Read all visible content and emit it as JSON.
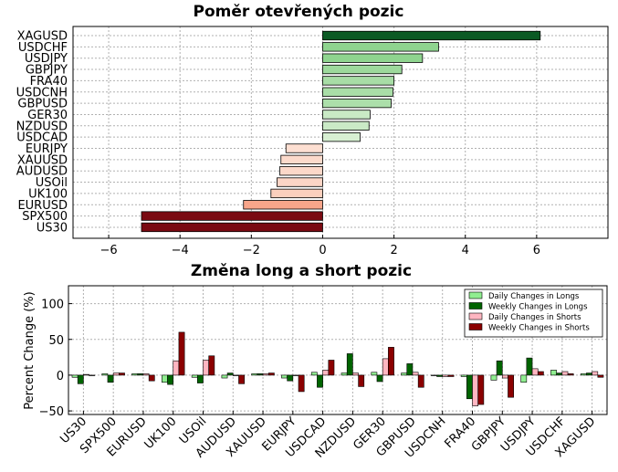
{
  "chart_data": [
    {
      "type": "bar",
      "orientation": "horizontal",
      "title": "Poměr otevřených pozic",
      "categories": [
        "XAGUSD",
        "USDCHF",
        "USDJPY",
        "GBPJPY",
        "FRA40",
        "USDCNH",
        "GBPUSD",
        "GER30",
        "NZDUSD",
        "USDCAD",
        "EURJPY",
        "XAUUSD",
        "AUDUSD",
        "USOil",
        "UK100",
        "EURUSD",
        "SPX500",
        "US30"
      ],
      "values": [
        6.1,
        3.25,
        2.8,
        2.22,
        2.0,
        1.97,
        1.92,
        1.33,
        1.3,
        1.05,
        -1.03,
        -1.17,
        -1.2,
        -1.28,
        -1.45,
        -2.22,
        -5.08,
        -5.08
      ],
      "xlim": [
        -7,
        8
      ],
      "xticks": [
        "−6",
        "−4",
        "−2",
        "0",
        "2",
        "4",
        "6"
      ],
      "xtick_values": [
        -6,
        -4,
        -2,
        0,
        2,
        4,
        6
      ],
      "grid": true,
      "colors": {
        "positive_strong": "#0b5a24",
        "positive_mid": "#8fd48f",
        "positive_light": "#d9f0d4",
        "negative_light": "#fde0d3",
        "negative_mid": "#f8a58a",
        "negative_strong": "#7a0a12"
      }
    },
    {
      "type": "bar",
      "orientation": "vertical",
      "title": "Změna long a short pozic",
      "ylabel": "Percent Change (%)",
      "ylim": [
        -55,
        125
      ],
      "yticks": [
        "−50",
        "0",
        "50",
        "100"
      ],
      "ytick_values": [
        -50,
        0,
        50,
        100
      ],
      "grid": true,
      "legend_position": "top-right",
      "categories": [
        "US30",
        "SPX500",
        "EURUSD",
        "UK100",
        "USOil",
        "AUDUSD",
        "XAUUSD",
        "EURJPY",
        "USDCAD",
        "NZDUSD",
        "GER30",
        "GBPUSD",
        "USDCNH",
        "FRA40",
        "GBPJPY",
        "USDJPY",
        "USDCHF",
        "XAGUSD"
      ],
      "series": [
        {
          "name": "Daily Changes in Longs",
          "color": "#90ee90",
          "values": [
            -3,
            2,
            2,
            -10,
            -3,
            -4,
            2,
            -4,
            4,
            3,
            4,
            3,
            0,
            -2,
            -7,
            -10,
            7,
            2
          ]
        },
        {
          "name": "Weekly Changes in Longs",
          "color": "#006400",
          "values": [
            -12,
            -10,
            2,
            -13,
            -11,
            3,
            2,
            -8,
            -17,
            30,
            -9,
            16,
            -2,
            -33,
            20,
            24,
            3,
            3
          ]
        },
        {
          "name": "Daily Changes in Shorts",
          "color": "#ffb6c1",
          "values": [
            1,
            3,
            2,
            20,
            21,
            0,
            2,
            0,
            7,
            3,
            23,
            4,
            -2,
            -43,
            -4,
            9,
            5,
            5
          ]
        },
        {
          "name": "Weekly Changes in Shorts",
          "color": "#8b0000",
          "values": [
            0,
            3,
            -8,
            60,
            27,
            -12,
            3,
            -23,
            21,
            -16,
            39,
            -17,
            -2,
            -41,
            -31,
            5,
            2,
            -3
          ]
        }
      ]
    }
  ]
}
